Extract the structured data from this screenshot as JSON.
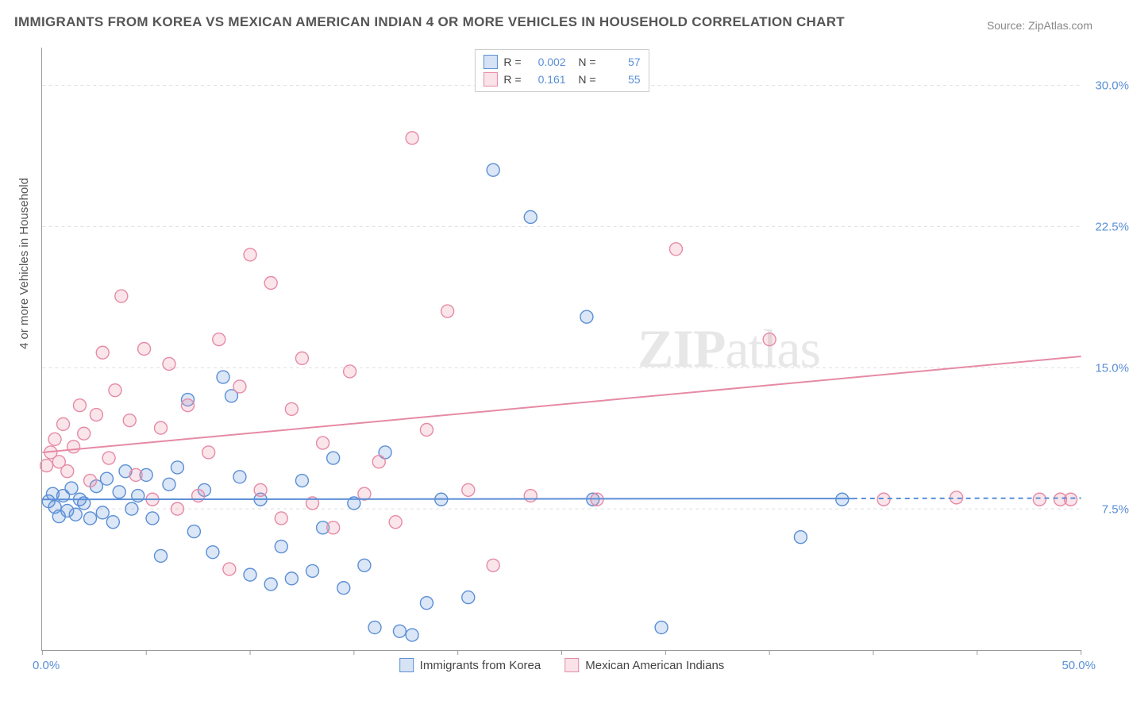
{
  "title": "IMMIGRANTS FROM KOREA VS MEXICAN AMERICAN INDIAN 4 OR MORE VEHICLES IN HOUSEHOLD CORRELATION CHART",
  "source": "Source: ZipAtlas.com",
  "y_axis_title": "4 or more Vehicles in Household",
  "watermark_bold": "ZIP",
  "watermark_light": "atlas",
  "chart": {
    "type": "scatter",
    "plot_bg": "#ffffff",
    "grid_color": "#dddddd",
    "axis_color": "#999999",
    "xlim": [
      0,
      50
    ],
    "ylim": [
      0,
      32
    ],
    "x_tick_step": 5,
    "x_label_min": "0.0%",
    "x_label_max": "50.0%",
    "y_ticks": [
      {
        "value": 7.5,
        "label": "7.5%"
      },
      {
        "value": 15.0,
        "label": "15.0%"
      },
      {
        "value": 22.5,
        "label": "22.5%"
      },
      {
        "value": 30.0,
        "label": "30.0%"
      }
    ],
    "marker_radius": 8,
    "marker_stroke_width": 1.4,
    "marker_fill_opacity": 0.22,
    "line_width": 2,
    "series": [
      {
        "name": "Immigrants from Korea",
        "color": "#5b8fd6",
        "R": "0.002",
        "N": "57",
        "regression": {
          "x1": 0,
          "y1": 8.0,
          "x2": 39,
          "y2": 8.05,
          "extend_x2": 50,
          "extend_y2": 8.07
        },
        "points": [
          [
            0.3,
            7.9
          ],
          [
            0.5,
            8.3
          ],
          [
            0.6,
            7.6
          ],
          [
            0.8,
            7.1
          ],
          [
            1.0,
            8.2
          ],
          [
            1.2,
            7.4
          ],
          [
            1.4,
            8.6
          ],
          [
            1.6,
            7.2
          ],
          [
            1.8,
            8.0
          ],
          [
            2.0,
            7.8
          ],
          [
            2.3,
            7.0
          ],
          [
            2.6,
            8.7
          ],
          [
            2.9,
            7.3
          ],
          [
            3.1,
            9.1
          ],
          [
            3.4,
            6.8
          ],
          [
            3.7,
            8.4
          ],
          [
            4.0,
            9.5
          ],
          [
            4.3,
            7.5
          ],
          [
            4.6,
            8.2
          ],
          [
            5.0,
            9.3
          ],
          [
            5.3,
            7.0
          ],
          [
            5.7,
            5.0
          ],
          [
            6.1,
            8.8
          ],
          [
            6.5,
            9.7
          ],
          [
            7.0,
            13.3
          ],
          [
            7.3,
            6.3
          ],
          [
            7.8,
            8.5
          ],
          [
            8.2,
            5.2
          ],
          [
            8.7,
            14.5
          ],
          [
            9.1,
            13.5
          ],
          [
            9.5,
            9.2
          ],
          [
            10.0,
            4.0
          ],
          [
            10.5,
            8.0
          ],
          [
            11.0,
            3.5
          ],
          [
            11.5,
            5.5
          ],
          [
            12.0,
            3.8
          ],
          [
            12.5,
            9.0
          ],
          [
            13.0,
            4.2
          ],
          [
            13.5,
            6.5
          ],
          [
            14.0,
            10.2
          ],
          [
            14.5,
            3.3
          ],
          [
            15.0,
            7.8
          ],
          [
            15.5,
            4.5
          ],
          [
            16.0,
            1.2
          ],
          [
            16.5,
            10.5
          ],
          [
            17.2,
            1.0
          ],
          [
            17.8,
            0.8
          ],
          [
            18.5,
            2.5
          ],
          [
            19.2,
            8.0
          ],
          [
            20.5,
            2.8
          ],
          [
            21.7,
            25.5
          ],
          [
            23.5,
            23.0
          ],
          [
            26.2,
            17.7
          ],
          [
            26.5,
            8.0
          ],
          [
            29.8,
            1.2
          ],
          [
            36.5,
            6.0
          ],
          [
            38.5,
            8.0
          ]
        ]
      },
      {
        "name": "Mexican American Indians",
        "color": "#e68aa5",
        "R": "0.161",
        "N": "55",
        "regression": {
          "x1": 0,
          "y1": 10.5,
          "x2": 50,
          "y2": 15.6
        },
        "points": [
          [
            0.2,
            9.8
          ],
          [
            0.4,
            10.5
          ],
          [
            0.6,
            11.2
          ],
          [
            0.8,
            10.0
          ],
          [
            1.0,
            12.0
          ],
          [
            1.2,
            9.5
          ],
          [
            1.5,
            10.8
          ],
          [
            1.8,
            13.0
          ],
          [
            2.0,
            11.5
          ],
          [
            2.3,
            9.0
          ],
          [
            2.6,
            12.5
          ],
          [
            2.9,
            15.8
          ],
          [
            3.2,
            10.2
          ],
          [
            3.5,
            13.8
          ],
          [
            3.8,
            18.8
          ],
          [
            4.2,
            12.2
          ],
          [
            4.5,
            9.3
          ],
          [
            4.9,
            16.0
          ],
          [
            5.3,
            8.0
          ],
          [
            5.7,
            11.8
          ],
          [
            6.1,
            15.2
          ],
          [
            6.5,
            7.5
          ],
          [
            7.0,
            13.0
          ],
          [
            7.5,
            8.2
          ],
          [
            8.0,
            10.5
          ],
          [
            8.5,
            16.5
          ],
          [
            9.0,
            4.3
          ],
          [
            9.5,
            14.0
          ],
          [
            10.0,
            21.0
          ],
          [
            10.5,
            8.5
          ],
          [
            11.0,
            19.5
          ],
          [
            11.5,
            7.0
          ],
          [
            12.0,
            12.8
          ],
          [
            12.5,
            15.5
          ],
          [
            13.0,
            7.8
          ],
          [
            13.5,
            11.0
          ],
          [
            14.0,
            6.5
          ],
          [
            14.8,
            14.8
          ],
          [
            15.5,
            8.3
          ],
          [
            16.2,
            10.0
          ],
          [
            17.0,
            6.8
          ],
          [
            17.8,
            27.2
          ],
          [
            18.5,
            11.7
          ],
          [
            19.5,
            18.0
          ],
          [
            20.5,
            8.5
          ],
          [
            21.7,
            4.5
          ],
          [
            23.5,
            8.2
          ],
          [
            26.7,
            8.0
          ],
          [
            30.5,
            21.3
          ],
          [
            35.0,
            16.5
          ],
          [
            40.5,
            8.0
          ],
          [
            44.0,
            8.1
          ],
          [
            48.0,
            8.0
          ],
          [
            49.0,
            8.0
          ],
          [
            49.5,
            8.0
          ]
        ]
      }
    ]
  },
  "y_tick_label_color": "#5b8fd6",
  "x_label_color": "#5b8fd6",
  "title_color": "#555555",
  "source_color": "#888888",
  "title_fontsize": 17,
  "source_fontsize": 14,
  "axis_title_fontsize": 15
}
